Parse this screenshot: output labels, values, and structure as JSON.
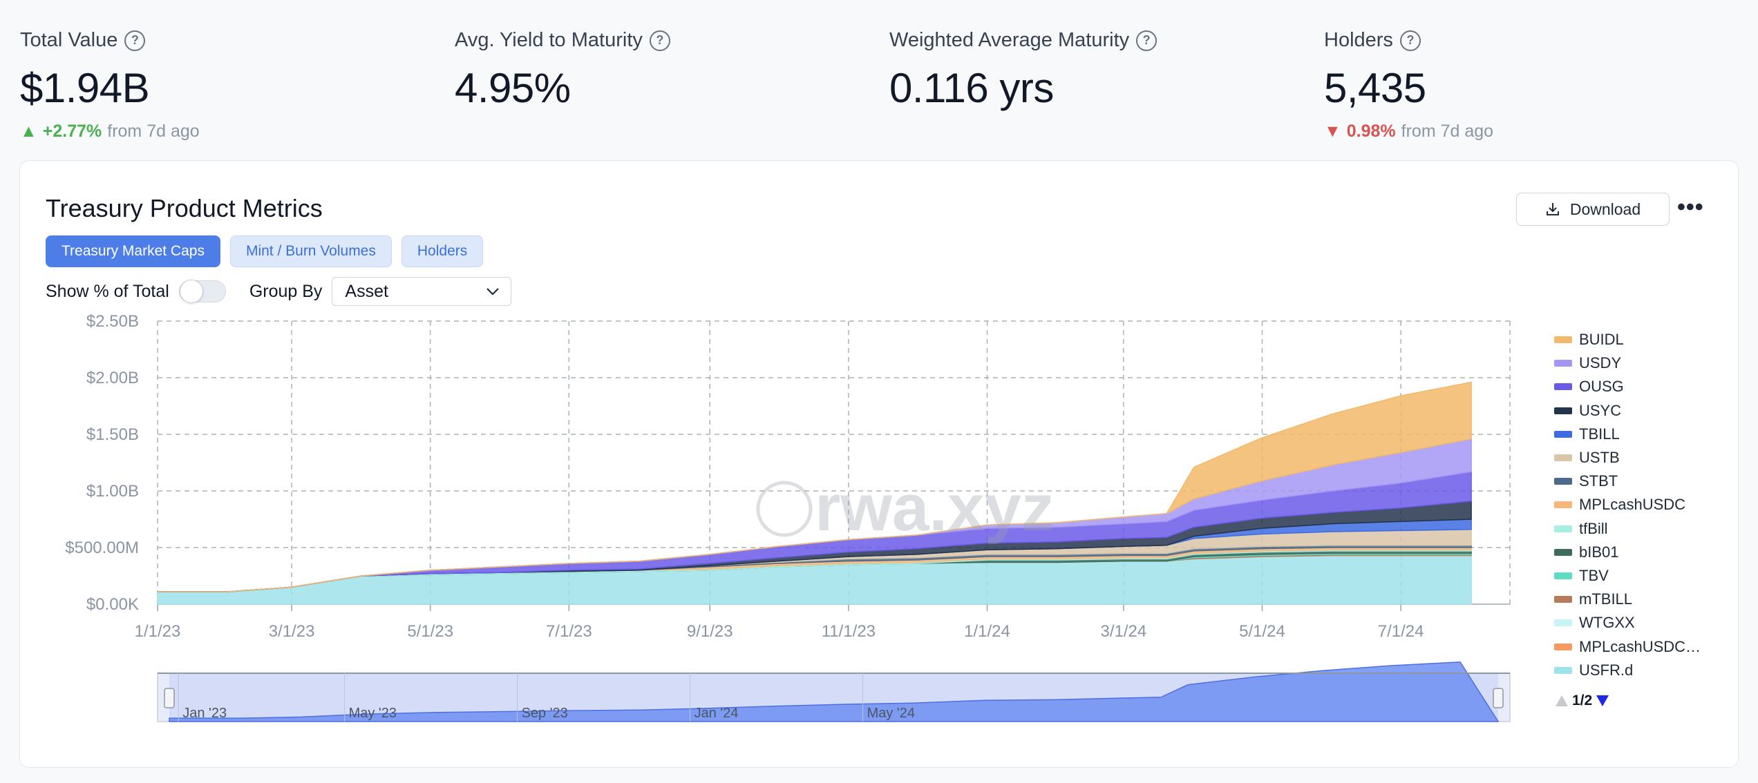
{
  "stats": [
    {
      "label": "Total Value",
      "value": "$1.94B",
      "change_dir": "up",
      "change_arrow": "▲",
      "change": "+2.77%",
      "change_suffix": "from 7d ago"
    },
    {
      "label": "Avg. Yield to Maturity",
      "value": "4.95%"
    },
    {
      "label": "Weighted Average Maturity",
      "value": "0.116 yrs"
    },
    {
      "label": "Holders",
      "value": "5,435",
      "change_dir": "down",
      "change_arrow": "▼",
      "change": "0.98%",
      "change_suffix": "from 7d ago"
    }
  ],
  "help_icon": "question-circle-icon",
  "card": {
    "title": "Treasury Product Metrics",
    "download_label": "Download",
    "more_label": "•••",
    "tabs": [
      {
        "label": "Treasury Market Caps",
        "active": true
      },
      {
        "label": "Mint / Burn Volumes",
        "active": false
      },
      {
        "label": "Holders",
        "active": false
      }
    ],
    "show_pct_label": "Show % of Total",
    "show_pct_on": false,
    "group_by_label": "Group By",
    "group_by_value": "Asset",
    "watermark": "rwa.xyz",
    "legend_pager": "1/2"
  },
  "chart_data": {
    "type": "area",
    "stacked": true,
    "title": "",
    "xlabel": "",
    "ylabel": "",
    "x_ticks": [
      "1/1/23",
      "3/1/23",
      "5/1/23",
      "7/1/23",
      "9/1/23",
      "11/1/23",
      "1/1/24",
      "3/1/24",
      "5/1/24",
      "7/1/24"
    ],
    "y_ticks": [
      "$0.00K",
      "$500.00M",
      "$1.00B",
      "$1.50B",
      "$2.00B",
      "$2.50B"
    ],
    "ylim": [
      0,
      2500000000
    ],
    "grid": true,
    "legend_position": "right",
    "x": [
      "1/1/23",
      "2/1/23",
      "3/1/23",
      "4/1/23",
      "5/1/23",
      "6/1/23",
      "7/1/23",
      "8/1/23",
      "9/1/23",
      "10/1/23",
      "11/1/23",
      "12/1/23",
      "1/1/24",
      "2/1/24",
      "3/1/24",
      "3/20/24",
      "4/1/24",
      "5/1/24",
      "6/1/24",
      "7/1/24",
      "8/1/24"
    ],
    "series": [
      {
        "name": "USFR.d",
        "color": "#9fe3ea",
        "values": [
          0.11,
          0.11,
          0.15,
          0.25,
          0.26,
          0.27,
          0.28,
          0.29,
          0.3,
          0.33,
          0.35,
          0.36,
          0.37,
          0.37,
          0.38,
          0.38,
          0.4,
          0.42,
          0.43,
          0.43,
          0.43
        ]
      },
      {
        "name": "MPLcashUSDC…",
        "color": "#f59a62",
        "values": [
          0,
          0,
          0,
          0,
          0,
          0,
          0,
          0,
          0,
          0,
          0,
          0,
          0,
          0,
          0,
          0,
          0,
          0,
          0,
          0,
          0
        ]
      },
      {
        "name": "WTGXX",
        "color": "#c8f4f4",
        "values": [
          0,
          0,
          0,
          0,
          0,
          0,
          0,
          0,
          0,
          0,
          0,
          0,
          0,
          0,
          0,
          0,
          0,
          0,
          0,
          0,
          0
        ]
      },
      {
        "name": "mTBILL",
        "color": "#b97a5c",
        "values": [
          0,
          0,
          0,
          0,
          0,
          0,
          0,
          0,
          0,
          0,
          0,
          0,
          0,
          0,
          0,
          0,
          0.01,
          0.01,
          0.01,
          0.01,
          0.01
        ]
      },
      {
        "name": "TBV",
        "color": "#5ddcc4",
        "values": [
          0,
          0,
          0,
          0,
          0,
          0,
          0,
          0,
          0,
          0,
          0,
          0,
          0,
          0,
          0,
          0,
          0.01,
          0.01,
          0.01,
          0.01,
          0.01
        ]
      },
      {
        "name": "bIB01",
        "color": "#3e6b5e",
        "values": [
          0,
          0,
          0,
          0,
          0,
          0,
          0,
          0,
          0,
          0,
          0,
          0,
          0.02,
          0.02,
          0.02,
          0.02,
          0.02,
          0.02,
          0.02,
          0.02,
          0.02
        ]
      },
      {
        "name": "tfBill",
        "color": "#a6efe2",
        "values": [
          0,
          0,
          0,
          0,
          0.01,
          0.01,
          0.01,
          0.01,
          0.01,
          0.01,
          0.01,
          0.01,
          0.01,
          0.01,
          0.01,
          0.01,
          0.01,
          0.01,
          0.01,
          0.01,
          0.01
        ]
      },
      {
        "name": "MPLcashUSDC",
        "color": "#f6b77a",
        "values": [
          0,
          0,
          0,
          0,
          0,
          0,
          0,
          0,
          0.02,
          0.02,
          0.02,
          0.02,
          0.02,
          0.02,
          0.02,
          0.02,
          0.02,
          0.02,
          0.02,
          0.02,
          0.02
        ]
      },
      {
        "name": "STBT",
        "color": "#4d6a8a",
        "values": [
          0,
          0,
          0,
          0,
          0,
          0,
          0,
          0,
          0.01,
          0.01,
          0.02,
          0.02,
          0.02,
          0.02,
          0.02,
          0.02,
          0.02,
          0.02,
          0.02,
          0.02,
          0.02
        ]
      },
      {
        "name": "USTB",
        "color": "#d9c6a8",
        "values": [
          0,
          0,
          0,
          0,
          0,
          0,
          0,
          0,
          0,
          0.01,
          0.02,
          0.03,
          0.04,
          0.05,
          0.06,
          0.07,
          0.09,
          0.11,
          0.12,
          0.13,
          0.14
        ]
      },
      {
        "name": "TBILL",
        "color": "#3d6be0",
        "values": [
          0,
          0,
          0,
          0,
          0,
          0,
          0,
          0,
          0,
          0,
          0,
          0,
          0,
          0,
          0,
          0,
          0.02,
          0.05,
          0.07,
          0.08,
          0.09
        ]
      },
      {
        "name": "USYC",
        "color": "#24344d",
        "values": [
          0,
          0,
          0,
          0,
          0,
          0,
          0.01,
          0.01,
          0.02,
          0.03,
          0.04,
          0.05,
          0.06,
          0.06,
          0.07,
          0.07,
          0.08,
          0.09,
          0.1,
          0.12,
          0.16
        ]
      },
      {
        "name": "OUSG",
        "color": "#6a5ae8",
        "values": [
          0,
          0,
          0,
          0,
          0.03,
          0.05,
          0.06,
          0.07,
          0.08,
          0.1,
          0.11,
          0.12,
          0.13,
          0.13,
          0.13,
          0.14,
          0.15,
          0.16,
          0.19,
          0.22,
          0.26
        ]
      },
      {
        "name": "USDY",
        "color": "#a596f4",
        "values": [
          0,
          0,
          0,
          0,
          0,
          0,
          0,
          0,
          0,
          0,
          0,
          0,
          0.03,
          0.04,
          0.06,
          0.07,
          0.1,
          0.17,
          0.23,
          0.27,
          0.29
        ]
      },
      {
        "name": "BUIDL",
        "color": "#f2b96a",
        "values": [
          0,
          0,
          0,
          0,
          0,
          0,
          0,
          0,
          0,
          0,
          0,
          0,
          0,
          0,
          0,
          0,
          0.28,
          0.38,
          0.45,
          0.5,
          0.5
        ]
      }
    ],
    "value_unit": "billions USD",
    "legend_order": [
      "BUIDL",
      "USDY",
      "OUSG",
      "USYC",
      "TBILL",
      "USTB",
      "STBT",
      "MPLcashUSDC",
      "tfBill",
      "bIB01",
      "TBV",
      "mTBILL",
      "WTGXX",
      "MPLcashUSDC…",
      "USFR.d"
    ],
    "navigator_labels": [
      "Jan '23",
      "May '23",
      "Sep '23",
      "Jan '24",
      "May '24"
    ]
  }
}
